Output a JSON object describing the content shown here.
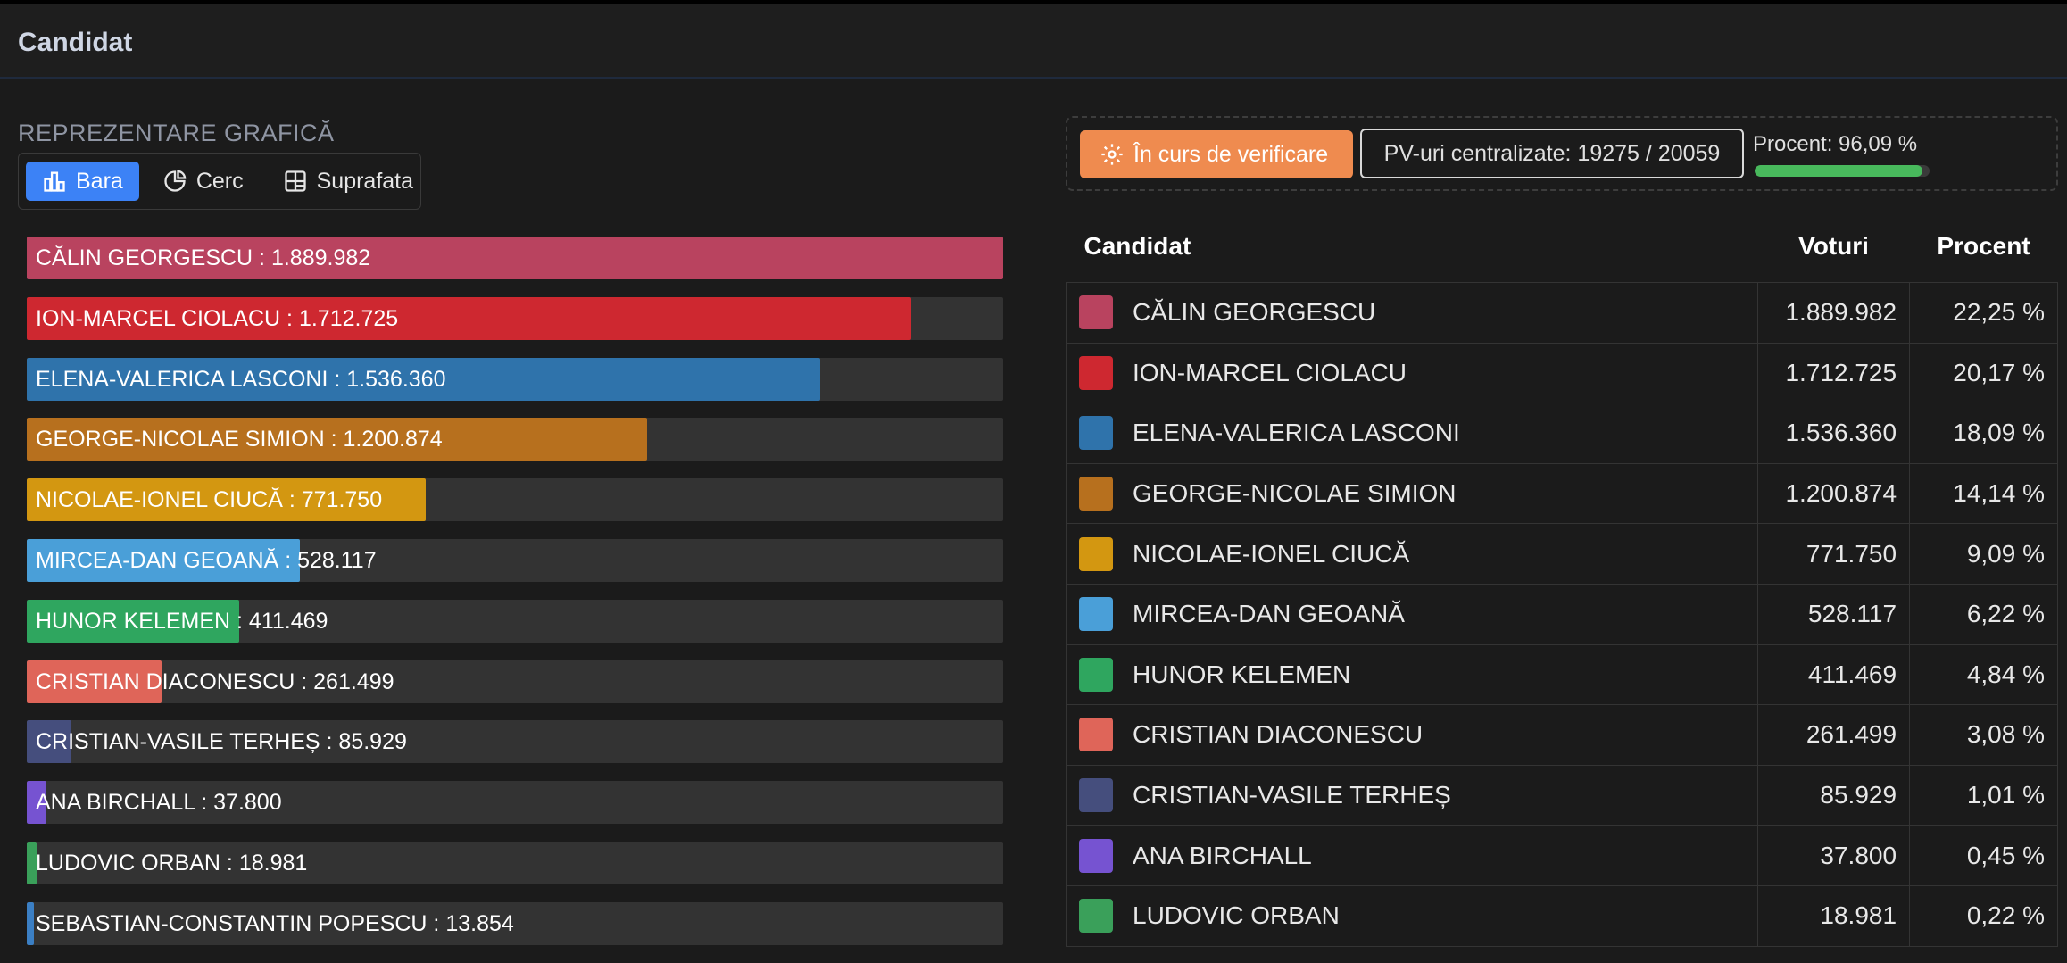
{
  "header": {
    "title": "Candidat"
  },
  "chart_section": {
    "label": "REPREZENTARE GRAFICĂ",
    "types": [
      {
        "label": "Bara",
        "icon": "bar-chart-icon",
        "active": true
      },
      {
        "label": "Cerc",
        "icon": "pie-chart-icon",
        "active": false
      },
      {
        "label": "Suprafata",
        "icon": "treemap-icon",
        "active": false
      }
    ]
  },
  "status": {
    "state_label": "În curs de verificare",
    "state_icon": "gear-icon",
    "state_color": "#ef8b4f",
    "pv_text": "PV-uri centralizate: 19275 / 20059",
    "percent_text": "Procent: 96,09 %",
    "percent_value": 96.09,
    "progress_color": "#48b95c"
  },
  "table": {
    "headers": {
      "candidate": "Candidat",
      "votes": "Voturi",
      "percent": "Procent"
    },
    "rows": [
      {
        "name": "CĂLIN GEORGESCU",
        "votes": "1.889.982",
        "percent": "22,25 %"
      },
      {
        "name": "ION-MARCEL CIOLACU",
        "votes": "1.712.725",
        "percent": "20,17 %"
      },
      {
        "name": "ELENA-VALERICA LASCONI",
        "votes": "1.536.360",
        "percent": "18,09 %"
      },
      {
        "name": "GEORGE-NICOLAE SIMION",
        "votes": "1.200.874",
        "percent": "14,14 %"
      },
      {
        "name": "NICOLAE-IONEL CIUCĂ",
        "votes": "771.750",
        "percent": "9,09 %"
      },
      {
        "name": "MIRCEA-DAN GEOANĂ",
        "votes": "528.117",
        "percent": "6,22 %"
      },
      {
        "name": "HUNOR KELEMEN",
        "votes": "411.469",
        "percent": "4,84 %"
      },
      {
        "name": "CRISTIAN DIACONESCU",
        "votes": "261.499",
        "percent": "3,08 %"
      },
      {
        "name": "CRISTIAN-VASILE TERHEȘ",
        "votes": "85.929",
        "percent": "1,01 %"
      },
      {
        "name": "ANA BIRCHALL",
        "votes": "37.800",
        "percent": "0,45 %"
      },
      {
        "name": "LUDOVIC ORBAN",
        "votes": "18.981",
        "percent": "0,22 %"
      }
    ]
  },
  "chart_data": {
    "type": "bar",
    "orientation": "horizontal",
    "categories": [
      "CĂLIN GEORGESCU",
      "ION-MARCEL CIOLACU",
      "ELENA-VALERICA LASCONI",
      "GEORGE-NICOLAE SIMION",
      "NICOLAE-IONEL CIUCĂ",
      "MIRCEA-DAN GEOANĂ",
      "HUNOR KELEMEN",
      "CRISTIAN DIACONESCU",
      "CRISTIAN-VASILE TERHEȘ",
      "ANA BIRCHALL",
      "LUDOVIC ORBAN",
      "SEBASTIAN-CONSTANTIN POPESCU"
    ],
    "values": [
      1889982,
      1712725,
      1536360,
      1200874,
      771750,
      528117,
      411469,
      261499,
      85929,
      37800,
      18981,
      13854
    ],
    "labels": [
      "CĂLIN GEORGESCU : 1.889.982",
      "ION-MARCEL CIOLACU : 1.712.725",
      "ELENA-VALERICA LASCONI : 1.536.360",
      "GEORGE-NICOLAE SIMION : 1.200.874",
      "NICOLAE-IONEL CIUCĂ : 771.750",
      "MIRCEA-DAN GEOANĂ : 528.117",
      "HUNOR KELEMEN : 411.469",
      "CRISTIAN DIACONESCU : 261.499",
      "CRISTIAN-VASILE TERHEȘ : 85.929",
      "ANA BIRCHALL : 37.800",
      "LUDOVIC ORBAN : 18.981",
      "SEBASTIAN-CONSTANTIN POPESCU : 13.854"
    ],
    "colors": [
      "#b9435f",
      "#ce2830",
      "#2f73ab",
      "#b7701e",
      "#d39711",
      "#4a9fd8",
      "#2fa65f",
      "#df6559",
      "#454e7d",
      "#7653d1",
      "#3aa05a",
      "#3b7fc4"
    ],
    "xlim": [
      0,
      1889982
    ],
    "grid": false
  }
}
